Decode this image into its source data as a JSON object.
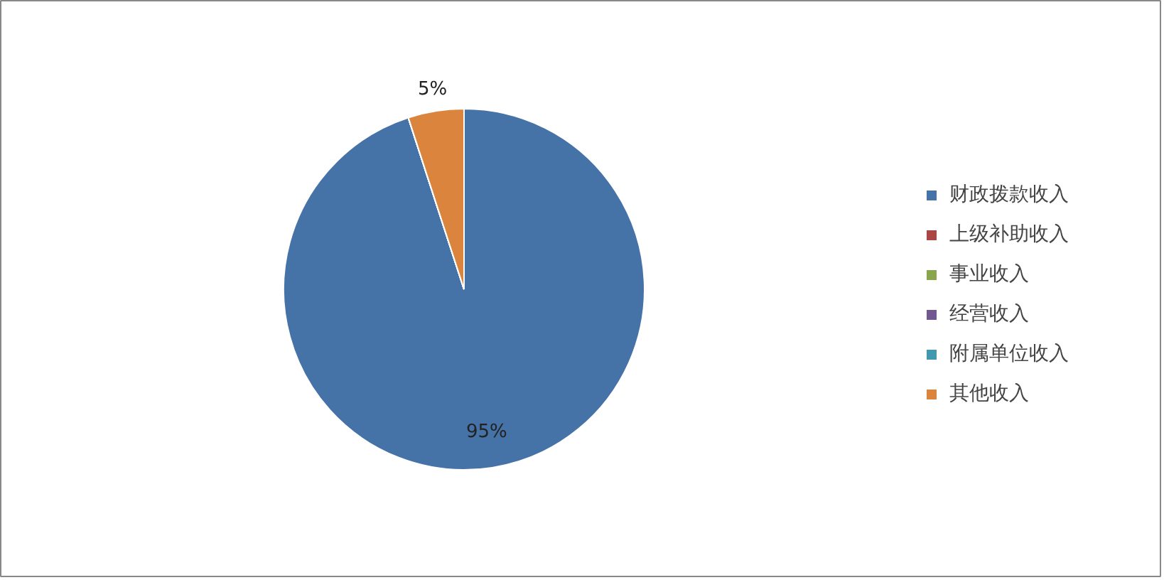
{
  "chart_data": {
    "type": "pie",
    "categories": [
      "财政拨款收入",
      "上级补助收入",
      "事业收入",
      "经营收入",
      "附属单位收入",
      "其他收入"
    ],
    "values": [
      95,
      0,
      0,
      0,
      0,
      5
    ],
    "colors": [
      "#4572a7",
      "#aa4643",
      "#89a54e",
      "#71588f",
      "#4198af",
      "#db843d"
    ],
    "value_labels": [
      "95%",
      null,
      null,
      null,
      null,
      "5%"
    ],
    "legend": "right"
  }
}
